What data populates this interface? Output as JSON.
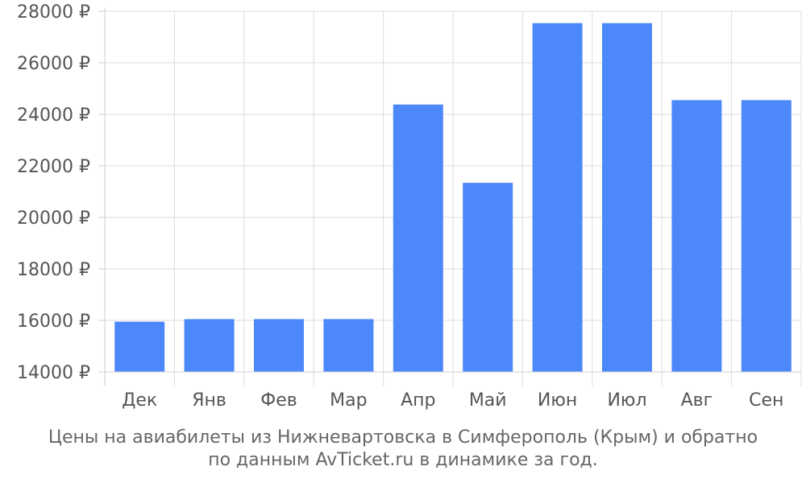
{
  "chart_data": {
    "type": "bar",
    "categories": [
      "Дек",
      "Янв",
      "Фев",
      "Мар",
      "Апр",
      "Май",
      "Июн",
      "Июл",
      "Авг",
      "Сен"
    ],
    "values": [
      15950,
      16050,
      16050,
      16050,
      24380,
      21340,
      27540,
      27540,
      24550,
      24550
    ],
    "ylim": [
      14000,
      28000
    ],
    "yticks": [
      14000,
      16000,
      18000,
      20000,
      22000,
      24000,
      26000,
      28000
    ],
    "ytick_labels": [
      "14000 ₽",
      "16000 ₽",
      "18000 ₽",
      "20000 ₽",
      "22000 ₽",
      "24000 ₽",
      "26000 ₽",
      "28000 ₽"
    ],
    "grid": true,
    "bar_color": "#4d88fb",
    "title_line1": "Цены на авиабилеты из Нижневартовска в Симферополь (Крым) и обратно",
    "title_line2": "по данным AvTicket.ru в динамике за год."
  }
}
